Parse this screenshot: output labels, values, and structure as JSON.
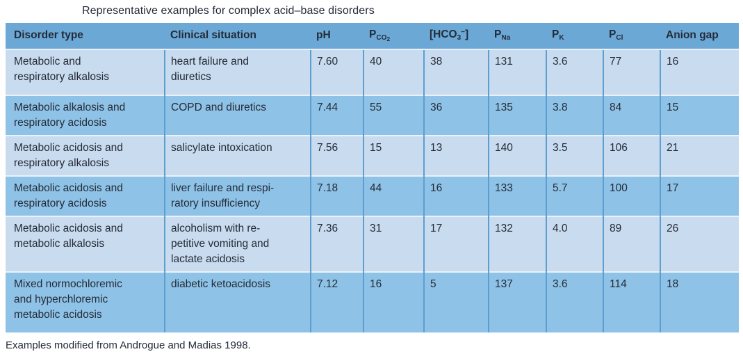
{
  "page": {
    "title": "Representative examples for complex acid–base disorders",
    "footnote": "Examples modified from Androgue and Madias 1998."
  },
  "colors": {
    "header_bg": "#6ba8d6",
    "row_light_bg": "#c9dbee",
    "row_dark_bg": "#8ec2e6",
    "column_divider": "#5d9ed0",
    "row_divider": "#eaf1fa",
    "text": "#242b38"
  },
  "table": {
    "headers": [
      {
        "name": "disorder-type",
        "segments": [
          {
            "style": "n",
            "text": "Disorder type"
          }
        ]
      },
      {
        "name": "clinical-situation",
        "segments": [
          {
            "style": "n",
            "text": "Clinical situation"
          }
        ]
      },
      {
        "name": "ph",
        "segments": [
          {
            "style": "n",
            "text": "pH"
          }
        ]
      },
      {
        "name": "pco2",
        "segments": [
          {
            "style": "n",
            "text": "P"
          },
          {
            "style": "sub",
            "text": "CO"
          },
          {
            "style": "subsub",
            "text": "2"
          }
        ]
      },
      {
        "name": "hco3",
        "segments": [
          {
            "style": "n",
            "text": "[HCO"
          },
          {
            "style": "sub",
            "text": "3"
          },
          {
            "style": "sup",
            "text": "−"
          },
          {
            "style": "n",
            "text": "]"
          }
        ]
      },
      {
        "name": "pna",
        "segments": [
          {
            "style": "n",
            "text": "P"
          },
          {
            "style": "sub",
            "text": "Na"
          }
        ]
      },
      {
        "name": "pk",
        "segments": [
          {
            "style": "n",
            "text": "P"
          },
          {
            "style": "sub",
            "text": "K"
          }
        ]
      },
      {
        "name": "pcl",
        "segments": [
          {
            "style": "n",
            "text": "P"
          },
          {
            "style": "sub",
            "text": "Cl"
          }
        ]
      },
      {
        "name": "anion-gap",
        "segments": [
          {
            "style": "n",
            "text": "Anion gap"
          }
        ]
      }
    ],
    "rows": [
      {
        "cells": [
          "Metabolic and\nrespiratory alkalosis",
          "heart failure and\ndiuretics",
          "7.60",
          "40",
          "38",
          "131",
          "3.6",
          "77",
          "16"
        ]
      },
      {
        "cells": [
          "Metabolic alkalosis and\nrespiratory acidosis",
          "COPD and diuretics",
          "7.44",
          "55",
          "36",
          "135",
          "3.8",
          "84",
          "15"
        ]
      },
      {
        "cells": [
          "Metabolic acidosis and\nrespiratory alkalosis",
          "salicylate intoxication",
          "7.56",
          "15",
          "13",
          "140",
          "3.5",
          "106",
          "21"
        ]
      },
      {
        "cells": [
          "Metabolic acidosis and\nrespiratory acidosis",
          "liver failure and respi-\nratory insufficiency",
          "7.18",
          "44",
          "16",
          "133",
          "5.7",
          "100",
          "17"
        ]
      },
      {
        "cells": [
          "Metabolic acidosis and\nmetabolic alkalosis",
          "alcoholism with re-\npetitive vomiting and\nlactate acidosis",
          "7.36",
          "31",
          "17",
          "132",
          "4.0",
          "89",
          "26"
        ]
      },
      {
        "cells": [
          "Mixed normochloremic\nand hyperchloremic\nmetabolic acidosis",
          "diabetic ketoacidosis",
          "7.12",
          "16",
          "5",
          "137",
          "3.6",
          "114",
          "18"
        ]
      }
    ]
  }
}
